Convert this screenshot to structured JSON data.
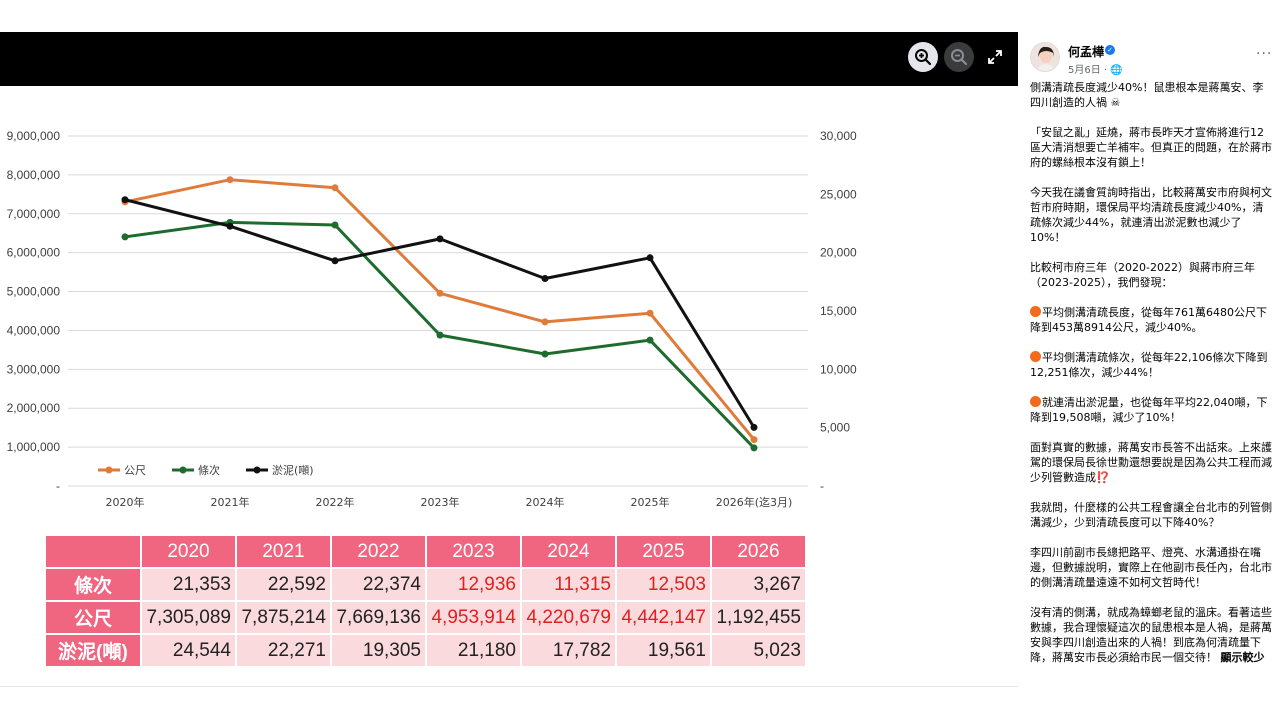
{
  "viewer": {
    "zoom_in_icon": "zoom-in-icon",
    "zoom_out_icon": "zoom-out-icon",
    "fullscreen_icon": "fullscreen-icon"
  },
  "chart_data": {
    "type": "line",
    "x": [
      "2020年",
      "2021年",
      "2022年",
      "2023年",
      "2024年",
      "2025年",
      "2026年(迄3月)"
    ],
    "left_axis": {
      "ticks": [
        "9,000,000",
        "8,000,000",
        "7,000,000",
        "6,000,000",
        "5,000,000",
        "4,000,000",
        "3,000,000",
        "2,000,000",
        "1,000,000",
        "-"
      ],
      "ylim": [
        0,
        9000000
      ]
    },
    "right_axis": {
      "ticks": [
        "30,000",
        "25,000",
        "20,000",
        "15,000",
        "10,000",
        "5,000",
        "-"
      ],
      "ylim": [
        0,
        30000
      ]
    },
    "series": [
      {
        "name": "公尺",
        "color": "#e07b39",
        "axis": "left",
        "values": [
          7305089,
          7875214,
          7669136,
          4953914,
          4220679,
          4442147,
          1192455
        ]
      },
      {
        "name": "條次",
        "color": "#1e6b2e",
        "axis": "right",
        "values": [
          21353,
          22592,
          22374,
          12936,
          11315,
          12503,
          3267
        ]
      },
      {
        "name": "淤泥(噸)",
        "color": "#111111",
        "axis": "right",
        "values": [
          24544,
          22271,
          19305,
          21180,
          17782,
          19561,
          5023
        ]
      }
    ],
    "grid": true,
    "legend": "bottom-left"
  },
  "table": {
    "years": [
      "2020",
      "2021",
      "2022",
      "2023",
      "2024",
      "2025",
      "2026"
    ],
    "rows": [
      {
        "label": "條次",
        "values": [
          "21,353",
          "22,592",
          "22,374",
          "12,936",
          "11,315",
          "12,503",
          "3,267"
        ],
        "red": [
          false,
          false,
          false,
          true,
          true,
          true,
          false
        ]
      },
      {
        "label": "公尺",
        "values": [
          "7,305,089",
          "7,875,214",
          "7,669,136",
          "4,953,914",
          "4,220,679",
          "4,442,147",
          "1,192,455"
        ],
        "red": [
          false,
          false,
          false,
          true,
          true,
          true,
          false
        ]
      },
      {
        "label": "淤泥(噸)",
        "values": [
          "24,544",
          "22,271",
          "19,305",
          "21,180",
          "17,782",
          "19,561",
          "5,023"
        ],
        "red": [
          false,
          false,
          false,
          false,
          false,
          false,
          false
        ]
      }
    ]
  },
  "post": {
    "author": "何孟樺",
    "date": "5月6日 · ",
    "more": "···",
    "paragraphs": [
      "側溝清疏長度減少40%！鼠患根本是蔣萬安、李四川創造的人禍 ☠",
      "「安鼠之亂」延燒，蔣市長昨天才宣佈將進行12區大清消想要亡羊補牢。但真正的問題，在於蔣市府的螺絲根本沒有鎖上！",
      "今天我在議會質詢時指出，比較蔣萬安市府與柯文哲市府時期，環保局平均清疏長度減少40%，清疏條次減少44%，就連清出淤泥數也減少了10%！",
      "比較柯市府三年（2020-2022）與蔣市府三年（2023-2025），我們發現：",
      "平均側溝清疏長度，從每年761萬6480公尺下降到453萬8914公尺，減少40%。",
      "平均側溝清疏條次，從每年22,106條次下降到12,251條次，減少44%！",
      "就連清出淤泥量，也從每年平均22,040噸，下降到19,508噸，減少了10%！",
      "面對真實的數據，蔣萬安市長答不出話來。上來護駕的環保局長徐世勳還想要說是因為公共工程而減少列管數造成⁉️",
      "我就問，什麼樣的公共工程會讓全台北市的列管側溝減少，少到清疏長度可以下降40%？",
      "李四川前副市長總把路平、燈亮、水溝通掛在嘴邊，但數據說明，實際上在他副市長任內，台北市的側溝清疏量遠遠不如柯文哲時代！",
      "沒有清的側溝，就成為蟑螂老鼠的溫床。看著這些數據，我合理懷疑這次的鼠患根本是人禍，是蔣萬安與李四川創造出來的人禍！到底為何清疏量下降，蔣萬安市長必須給市民一個交待！"
    ],
    "see_more": "顯示較少"
  }
}
